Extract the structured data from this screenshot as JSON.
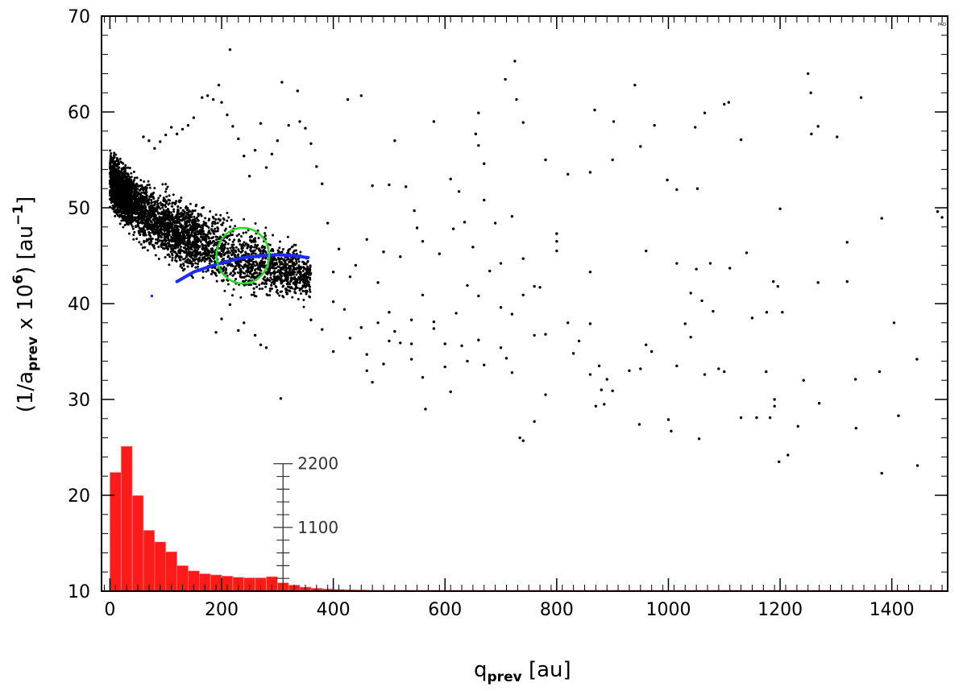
{
  "chart_data": {
    "type": "scatter",
    "title": "",
    "corner_tag": "PAD",
    "xlabel": {
      "main": "q",
      "sub": "prev",
      "suffix": " [au]"
    },
    "ylabel": {
      "prefix": "(1/a",
      "sub": "prev",
      "mid": " x 10",
      "sup1": "6",
      "post": ") [au",
      "sup2": "−1",
      "end": "]"
    },
    "xlim": [
      -15,
      1500
    ],
    "ylim": [
      10,
      70
    ],
    "x_ticks": [
      0,
      200,
      400,
      600,
      800,
      1000,
      1200,
      1400
    ],
    "x_tick_labels": [
      "0",
      "200",
      "400",
      "600",
      "800",
      "1000",
      "1200",
      "1400"
    ],
    "y_ticks": [
      10,
      20,
      30,
      40,
      50,
      60,
      70
    ],
    "y_tick_labels": [
      "10",
      "20",
      "30",
      "40",
      "50",
      "60",
      "70"
    ],
    "grid": false,
    "colors": {
      "points": "#000000",
      "curve": "#1a2bff",
      "circle": "#22dd22",
      "histogram": "#ff1a1a",
      "histogram_edge": "#ff9a9a"
    },
    "scatter_points": [
      [
        215,
        66.5
      ],
      [
        725,
        65.3
      ],
      [
        708,
        63.4
      ],
      [
        1250,
        64.0
      ],
      [
        1255,
        62.0
      ],
      [
        940,
        62.8
      ],
      [
        195,
        62.8
      ],
      [
        308,
        63.1
      ],
      [
        336,
        62.2
      ],
      [
        1345,
        61.5
      ],
      [
        728,
        61.3
      ],
      [
        1108,
        61.0
      ],
      [
        1065,
        59.9
      ],
      [
        580,
        59.0
      ],
      [
        868,
        60.2
      ],
      [
        902,
        59.0
      ],
      [
        975,
        58.6
      ],
      [
        660,
        59.9
      ],
      [
        1048,
        58.4
      ],
      [
        1256,
        57.7
      ],
      [
        1268,
        58.5
      ],
      [
        1302,
        57.4
      ],
      [
        1130,
        57.1
      ],
      [
        740,
        58.9
      ],
      [
        510,
        57.0
      ],
      [
        426,
        61.3
      ],
      [
        450,
        61.7
      ],
      [
        655,
        57.7
      ],
      [
        660,
        56.5
      ],
      [
        1100,
        60.8
      ],
      [
        670,
        54.6
      ],
      [
        780,
        55.0
      ],
      [
        820,
        53.5
      ],
      [
        860,
        53.7
      ],
      [
        900,
        55.0
      ],
      [
        950,
        56.4
      ],
      [
        1015,
        51.9
      ],
      [
        998,
        52.9
      ],
      [
        1052,
        52.0
      ],
      [
        1200,
        49.9
      ],
      [
        1320,
        46.4
      ],
      [
        1482,
        49.6
      ],
      [
        1490,
        49.0
      ],
      [
        800,
        46.5
      ],
      [
        800,
        47.3
      ],
      [
        800,
        45.5
      ],
      [
        860,
        43.3
      ],
      [
        960,
        45.5
      ],
      [
        1015,
        44.2
      ],
      [
        1075,
        44.2
      ],
      [
        1110,
        43.7
      ],
      [
        1140,
        45.3
      ],
      [
        1040,
        41.1
      ],
      [
        1050,
        43.6
      ],
      [
        1060,
        40.3
      ],
      [
        1080,
        39.2
      ],
      [
        1150,
        38.5
      ],
      [
        1176,
        39.1
      ],
      [
        1188,
        42.3
      ],
      [
        1196,
        41.8
      ],
      [
        1204,
        39.1
      ],
      [
        1268,
        42.2
      ],
      [
        1320,
        42.3
      ],
      [
        1382,
        48.9
      ],
      [
        1404,
        38.0
      ],
      [
        930,
        33.0
      ],
      [
        950,
        33.2
      ],
      [
        960,
        35.7
      ],
      [
        970,
        35.0
      ],
      [
        1015,
        33.5
      ],
      [
        1030,
        37.9
      ],
      [
        1040,
        36.5
      ],
      [
        1065,
        32.6
      ],
      [
        1090,
        33.2
      ],
      [
        1100,
        32.9
      ],
      [
        1175,
        32.9
      ],
      [
        1190,
        30.0
      ],
      [
        1190,
        29.3
      ],
      [
        1130,
        28.1
      ],
      [
        1158,
        28.1
      ],
      [
        1182,
        28.1
      ],
      [
        1242,
        32.0
      ],
      [
        1270,
        29.6
      ],
      [
        1335,
        32.1
      ],
      [
        1336,
        27.0
      ],
      [
        1378,
        32.9
      ],
      [
        1382,
        22.3
      ],
      [
        1412,
        28.3
      ],
      [
        1445,
        34.2
      ],
      [
        1446,
        23.1
      ],
      [
        1198,
        23.5
      ],
      [
        1214,
        24.2
      ],
      [
        1232,
        27.2
      ],
      [
        1000,
        27.9
      ],
      [
        1005,
        26.7
      ],
      [
        1055,
        25.9
      ],
      [
        948,
        27.4
      ],
      [
        870,
        29.3
      ],
      [
        885,
        29.5
      ],
      [
        880,
        31.0
      ],
      [
        900,
        30.9
      ],
      [
        830,
        34.8
      ],
      [
        860,
        32.6
      ],
      [
        876,
        33.5
      ],
      [
        890,
        32.1
      ],
      [
        840,
        36.1
      ],
      [
        820,
        38.0
      ],
      [
        860,
        37.9
      ],
      [
        760,
        36.7
      ],
      [
        780,
        30.5
      ],
      [
        734,
        26.0
      ],
      [
        740,
        25.7
      ],
      [
        760,
        27.7
      ],
      [
        565,
        29.0
      ],
      [
        610,
        30.8
      ],
      [
        560,
        32.3
      ],
      [
        470,
        31.8
      ],
      [
        460,
        34.7
      ],
      [
        520,
        35.9
      ],
      [
        540,
        34.2
      ],
      [
        600,
        35.8
      ],
      [
        640,
        34.0
      ],
      [
        670,
        33.6
      ],
      [
        700,
        35.4
      ],
      [
        710,
        34.3
      ],
      [
        720,
        32.8
      ],
      [
        306,
        30.1
      ],
      [
        500,
        39.1
      ],
      [
        540,
        38.3
      ],
      [
        560,
        40.9
      ],
      [
        580,
        38.1
      ],
      [
        620,
        39.0
      ],
      [
        640,
        41.9
      ],
      [
        660,
        40.8
      ],
      [
        700,
        39.6
      ],
      [
        720,
        38.9
      ],
      [
        740,
        40.9
      ],
      [
        770,
        41.7
      ],
      [
        700,
        44.2
      ],
      [
        680,
        43.4
      ],
      [
        650,
        45.9
      ],
      [
        635,
        48.5
      ],
      [
        615,
        47.8
      ],
      [
        590,
        45.2
      ],
      [
        560,
        46.5
      ],
      [
        545,
        49.7
      ],
      [
        520,
        44.9
      ],
      [
        490,
        45.4
      ],
      [
        480,
        42.2
      ],
      [
        460,
        46.7
      ],
      [
        440,
        44.0
      ],
      [
        430,
        42.8
      ],
      [
        410,
        45.7
      ],
      [
        400,
        43.3
      ],
      [
        390,
        48.4
      ],
      [
        380,
        52.5
      ],
      [
        370,
        54.3
      ],
      [
        360,
        56.7
      ],
      [
        350,
        58.3
      ],
      [
        340,
        59.0
      ],
      [
        320,
        58.6
      ],
      [
        300,
        57.0
      ],
      [
        290,
        55.6
      ],
      [
        280,
        54.2
      ],
      [
        270,
        58.8
      ],
      [
        260,
        56.0
      ],
      [
        250,
        53.3
      ],
      [
        240,
        55.4
      ],
      [
        230,
        57.2
      ],
      [
        220,
        58.5
      ],
      [
        210,
        59.7
      ],
      [
        200,
        61.0
      ],
      [
        185,
        61.3
      ],
      [
        175,
        61.7
      ],
      [
        165,
        61.5
      ],
      [
        150,
        59.4
      ],
      [
        140,
        58.6
      ],
      [
        130,
        58.2
      ],
      [
        120,
        57.7
      ],
      [
        110,
        58.4
      ],
      [
        100,
        57.6
      ],
      [
        90,
        56.9
      ],
      [
        80,
        56.2
      ],
      [
        70,
        57.0
      ],
      [
        60,
        57.4
      ],
      [
        470,
        52.3
      ],
      [
        500,
        52.4
      ],
      [
        530,
        52.2
      ],
      [
        550,
        47.9
      ],
      [
        610,
        53.0
      ],
      [
        625,
        51.7
      ],
      [
        670,
        50.8
      ],
      [
        690,
        48.4
      ],
      [
        720,
        49.1
      ],
      [
        740,
        44.7
      ],
      [
        760,
        41.8
      ],
      [
        780,
        36.8
      ],
      [
        660,
        36.2
      ],
      [
        630,
        35.6
      ],
      [
        600,
        33.4
      ],
      [
        580,
        37.4
      ],
      [
        540,
        35.8
      ],
      [
        510,
        37.1
      ],
      [
        480,
        38.0
      ],
      [
        450,
        37.5
      ],
      [
        420,
        39.4
      ],
      [
        400,
        40.2
      ],
      [
        380,
        37.3
      ],
      [
        360,
        38.3
      ],
      [
        350,
        41.3
      ],
      [
        430,
        36.4
      ],
      [
        400,
        35.0
      ],
      [
        460,
        33.0
      ],
      [
        490,
        33.7
      ],
      [
        500,
        36.1
      ],
      [
        270,
        35.7
      ],
      [
        280,
        35.4
      ],
      [
        260,
        36.7
      ],
      [
        240,
        38.0
      ],
      [
        230,
        37.2
      ],
      [
        215,
        39.9
      ],
      [
        200,
        38.4
      ],
      [
        190,
        37.0
      ],
      [
        75,
        40.8
      ]
    ],
    "dense_cloud": {
      "description_for_script": false,
      "center_curve": [
        [
          0,
          53.0
        ],
        [
          40,
          50.5
        ],
        [
          80,
          48.8
        ],
        [
          120,
          47.5
        ],
        [
          160,
          46.5
        ],
        [
          200,
          45.5
        ],
        [
          240,
          44.6
        ],
        [
          280,
          44.0
        ],
        [
          320,
          43.4
        ],
        [
          360,
          42.7
        ]
      ],
      "spread": [
        [
          0,
          4.0
        ],
        [
          60,
          4.4
        ],
        [
          120,
          5.0
        ],
        [
          200,
          5.5
        ],
        [
          280,
          4.5
        ],
        [
          360,
          3.2
        ]
      ]
    },
    "curve": [
      [
        120,
        42.3
      ],
      [
        150,
        43.3
      ],
      [
        180,
        43.9
      ],
      [
        210,
        44.4
      ],
      [
        240,
        44.8
      ],
      [
        270,
        45.0
      ],
      [
        300,
        45.1
      ],
      [
        330,
        45.0
      ],
      [
        355,
        44.8
      ]
    ],
    "circle": {
      "cx": 238,
      "cy": 45.0,
      "r_x": 47,
      "r_y": 2.9
    },
    "histogram": {
      "bin_width": 20,
      "bin_start": 0,
      "counts": [
        2050,
        2500,
        1650,
        1050,
        850,
        680,
        440,
        350,
        300,
        280,
        260,
        240,
        230,
        230,
        250,
        145,
        105,
        70,
        50,
        40,
        32,
        26,
        22,
        18,
        16,
        14,
        12,
        11,
        10,
        9,
        8,
        8,
        7,
        7,
        6,
        6,
        5,
        5,
        5,
        4,
        4,
        4,
        4,
        3,
        3,
        3,
        3,
        3,
        3,
        3,
        2,
        2,
        2,
        2,
        2,
        2,
        2,
        2,
        2,
        2,
        2,
        2,
        2,
        2,
        2,
        2,
        2,
        2,
        2,
        2,
        2,
        2,
        2,
        2,
        2
      ],
      "axis_x": 310,
      "axis_max": 2200,
      "axis_ticks": [
        0,
        220,
        440,
        660,
        880,
        1100,
        1320,
        1540,
        1760,
        1980,
        2200
      ],
      "axis_labels": [
        {
          "value": 2200,
          "text": "2200"
        },
        {
          "value": 1100,
          "text": "1100"
        }
      ]
    }
  }
}
